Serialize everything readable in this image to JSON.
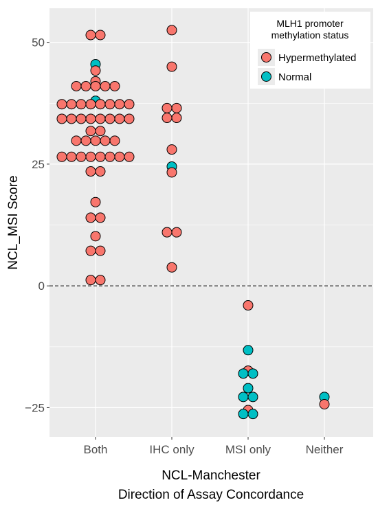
{
  "chart_data": {
    "type": "scatter",
    "subtype": "dotplot",
    "xlabel": [
      "NCL-Manchester",
      "Direction of Assay Concordance"
    ],
    "ylabel": "NCL_MSI Score",
    "ylim": [
      -31,
      57
    ],
    "y_ticks": [
      -25,
      0,
      25,
      50
    ],
    "y_tick_labels": [
      "−25",
      "0",
      "25",
      "50"
    ],
    "categories": [
      "Both",
      "IHC only",
      "MSI only",
      "Neither"
    ],
    "reference_line": {
      "y": 0,
      "style": "dashed"
    },
    "grid": true,
    "background": "#ebebeb",
    "legend": {
      "title": [
        "MLH1 promoter",
        "methylation status"
      ],
      "position": "top-right",
      "entries": [
        {
          "name": "Hypermethylated",
          "color": "#f8766d"
        },
        {
          "name": "Normal",
          "color": "#00bfc4"
        }
      ]
    },
    "series": [
      {
        "name": "Hypermethylated",
        "color": "#f8766d",
        "points": [
          {
            "x": "Both",
            "values": [
              51.5,
              51.5,
              44.2,
              42,
              41,
              41,
              41,
              41,
              41,
              37.3,
              37.3,
              37.3,
              37.3,
              37.3,
              37.3,
              37.3,
              37.3,
              34.3,
              34.3,
              34.3,
              34.3,
              34.3,
              34.3,
              34.3,
              34.3,
              31.8,
              31.8,
              29.8,
              29.8,
              29.8,
              29.8,
              29.8,
              26.5,
              26.5,
              26.5,
              26.5,
              26.5,
              26.5,
              26.5,
              26.5,
              23.5,
              23.5,
              17.2,
              14,
              14,
              10.2,
              7.2,
              7.2,
              1.2,
              1.2
            ]
          },
          {
            "x": "IHC only",
            "values": [
              52.5,
              45,
              36.5,
              36.5,
              34.5,
              34.5,
              28,
              23.3,
              11,
              11,
              3.8
            ]
          },
          {
            "x": "MSI only",
            "values": [
              -4,
              -17.4,
              -25.5
            ]
          },
          {
            "x": "Neither",
            "values": [
              -24.3
            ]
          }
        ]
      },
      {
        "name": "Normal",
        "color": "#00bfc4",
        "points": [
          {
            "x": "Both",
            "values": [
              45.5,
              38
            ]
          },
          {
            "x": "IHC only",
            "values": [
              24.5
            ]
          },
          {
            "x": "MSI only",
            "values": [
              -13.2,
              -18,
              -18,
              -21,
              -22.8,
              -22.8,
              -26.3,
              -26.3
            ]
          },
          {
            "x": "Neither",
            "values": [
              -22.8
            ]
          }
        ]
      }
    ]
  }
}
